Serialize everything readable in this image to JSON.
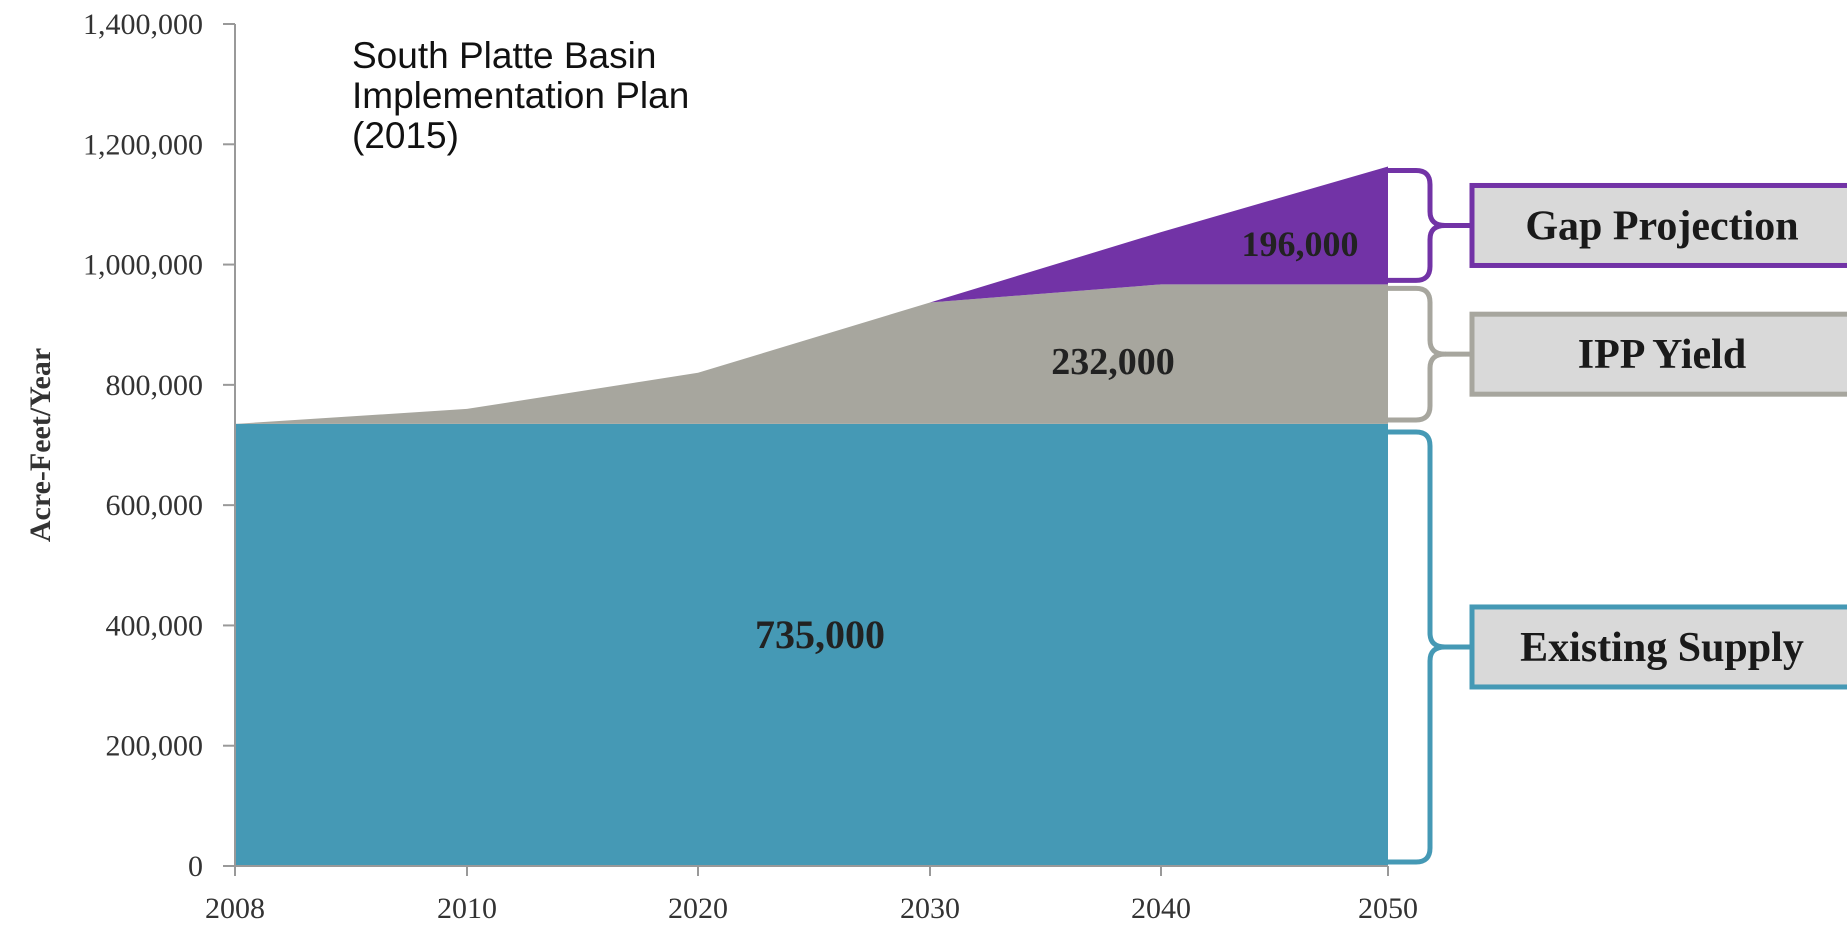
{
  "note": {
    "lines": [
      "South Platte Basin",
      "Implementation Plan",
      "(2015)"
    ]
  },
  "colors": {
    "existing": "#4599b5",
    "ipp": "#a7a69e",
    "gap": "#7233a6",
    "box_fill": "#d9d9d9",
    "axis": "#999999"
  },
  "chart_data": {
    "type": "area",
    "title": "",
    "xlabel": "",
    "ylabel": "Acre-Feet/Year",
    "ylim": [
      0,
      1400000
    ],
    "y_ticks": [
      0,
      200000,
      400000,
      600000,
      800000,
      1000000,
      1200000,
      1400000
    ],
    "y_tick_labels": [
      "0",
      "200,000",
      "400,000",
      "600,000",
      "800,000",
      "1,000,000",
      "1,200,000",
      "1,400,000"
    ],
    "x_ticks": [
      "2008",
      "2010",
      "2020",
      "2030",
      "2040",
      "2050"
    ],
    "series": [
      {
        "name": "Existing Supply",
        "values": [
          735000,
          735000,
          735000,
          735000,
          735000,
          735000
        ],
        "label": "735,000",
        "color": "#4599b5"
      },
      {
        "name": "IPP Yield",
        "values": [
          0,
          25000,
          85000,
          202000,
          232000,
          232000
        ],
        "label": "232,000",
        "color": "#a7a69e"
      },
      {
        "name": "Gap Projection",
        "values": [
          0,
          0,
          0,
          0,
          87000,
          196000
        ],
        "label": "196,000",
        "color": "#7233a6"
      }
    ],
    "legend": "right (bracketed boxes)"
  }
}
